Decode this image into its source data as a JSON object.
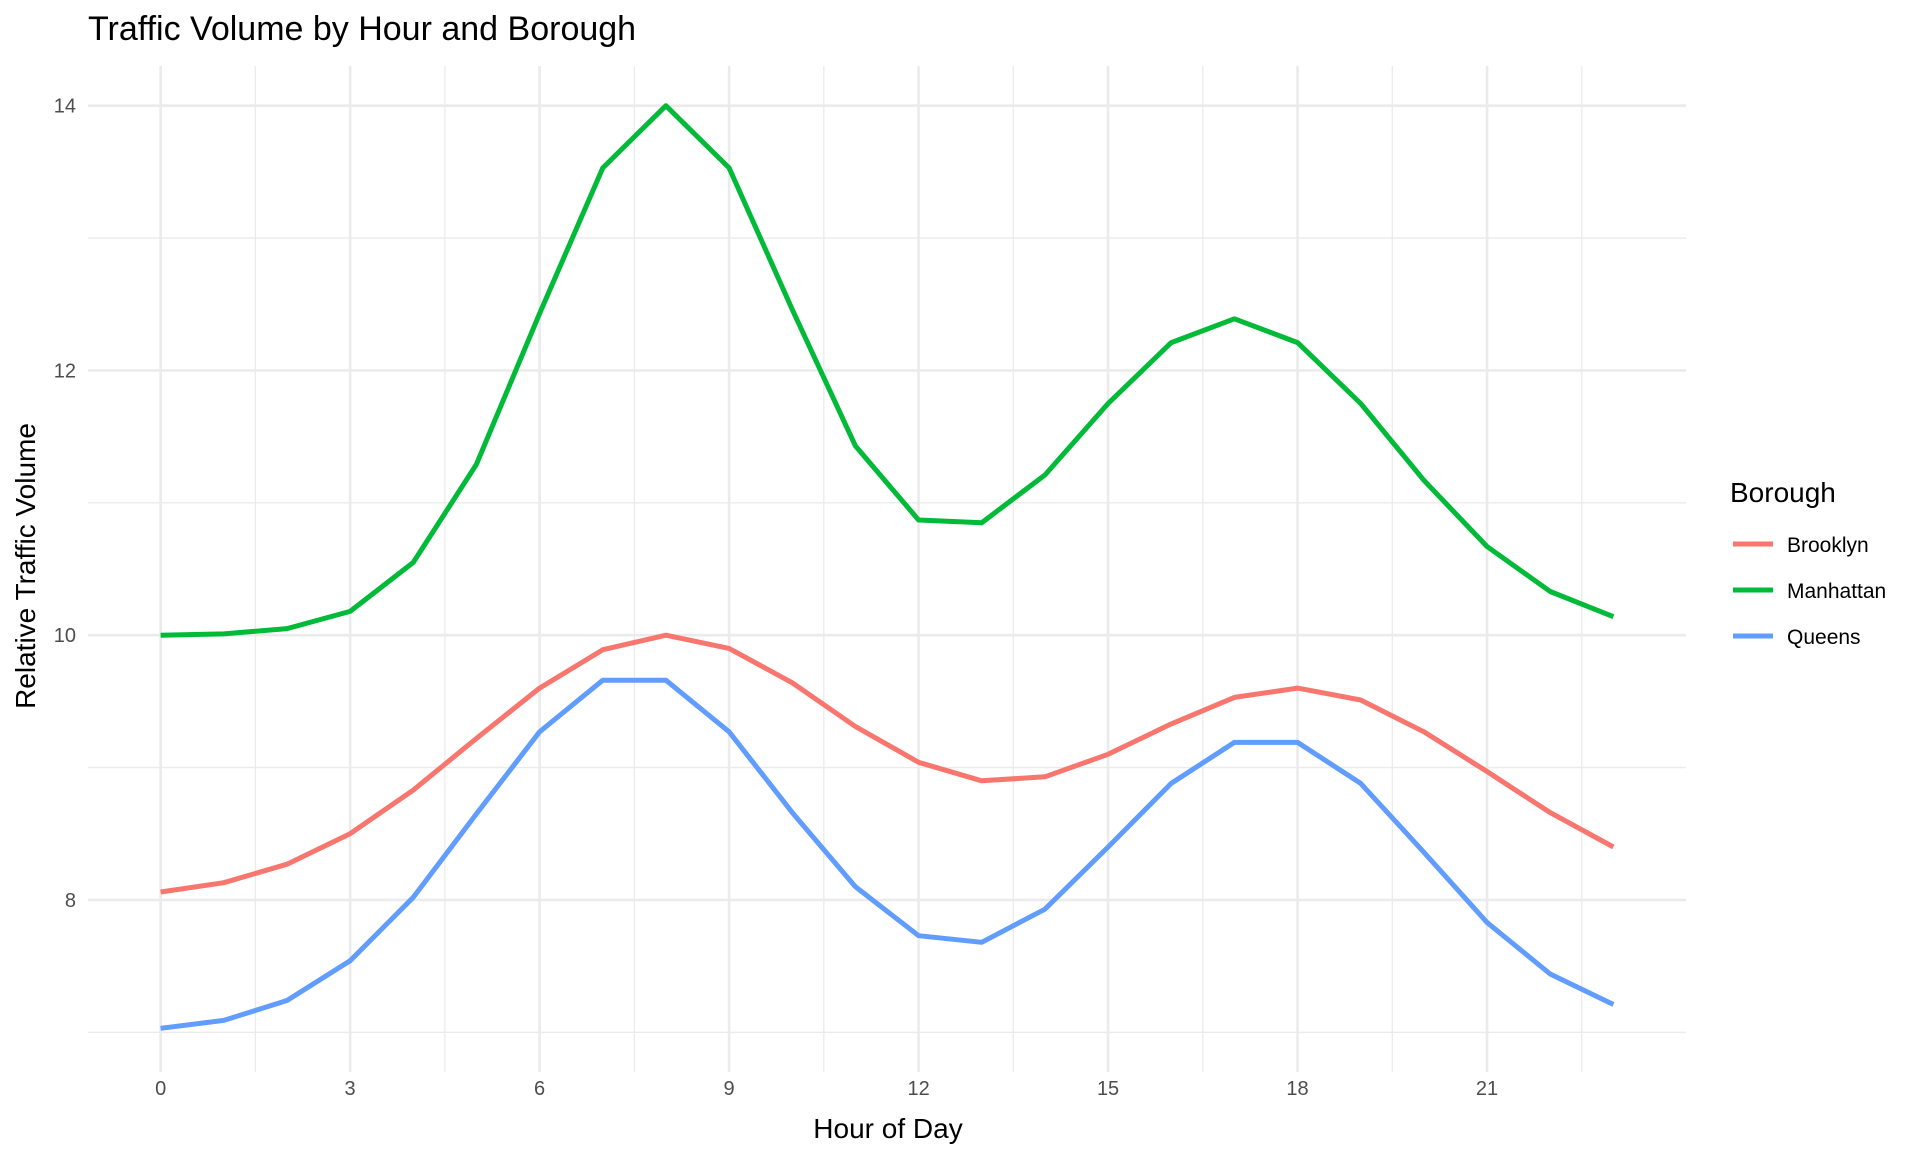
{
  "chart_data": {
    "type": "line",
    "title": "Traffic Volume by Hour and Borough",
    "xlabel": "Hour of Day",
    "ylabel": "Relative Traffic Volume",
    "x": [
      0,
      1,
      2,
      3,
      4,
      5,
      6,
      7,
      8,
      9,
      10,
      11,
      12,
      13,
      14,
      15,
      16,
      17,
      18,
      19,
      20,
      21,
      22,
      23
    ],
    "xlim": [
      -1.15,
      24.15
    ],
    "ylim": [
      6.7,
      14.3
    ],
    "x_ticks": [
      0,
      3,
      6,
      9,
      12,
      15,
      18,
      21
    ],
    "x_tick_labels": [
      "0",
      "3",
      "6",
      "9",
      "12",
      "15",
      "18",
      "21"
    ],
    "x_minor_ticks": [
      1.5,
      4.5,
      7.5,
      10.5,
      13.5,
      16.5,
      19.5,
      22.5
    ],
    "y_ticks": [
      8,
      10,
      12,
      14
    ],
    "y_tick_labels": [
      "8",
      "10",
      "12",
      "14"
    ],
    "y_minor_ticks": [
      7,
      9,
      11,
      13
    ],
    "grid": true,
    "legend": {
      "title": "Borough",
      "position": "right"
    },
    "series": [
      {
        "name": "Brooklyn",
        "color": "#F8766D",
        "values": [
          8.06,
          8.13,
          8.27,
          8.5,
          8.83,
          9.22,
          9.6,
          9.89,
          10.0,
          9.9,
          9.64,
          9.31,
          9.04,
          8.9,
          8.93,
          9.1,
          9.33,
          9.53,
          9.6,
          9.51,
          9.27,
          8.97,
          8.66,
          8.4
        ]
      },
      {
        "name": "Manhattan",
        "color": "#00BA38",
        "values": [
          10.0,
          10.01,
          10.05,
          10.18,
          10.55,
          11.29,
          12.43,
          13.53,
          14.0,
          13.53,
          12.46,
          11.43,
          10.87,
          10.85,
          11.21,
          11.75,
          12.21,
          12.39,
          12.21,
          11.75,
          11.17,
          10.67,
          10.33,
          10.14
        ]
      },
      {
        "name": "Queens",
        "color": "#619CFF",
        "values": [
          7.03,
          7.09,
          7.24,
          7.54,
          8.02,
          8.65,
          9.27,
          9.66,
          9.66,
          9.27,
          8.66,
          8.1,
          7.73,
          7.68,
          7.93,
          8.4,
          8.88,
          9.19,
          9.19,
          8.88,
          8.36,
          7.83,
          7.44,
          7.21
        ]
      }
    ]
  }
}
